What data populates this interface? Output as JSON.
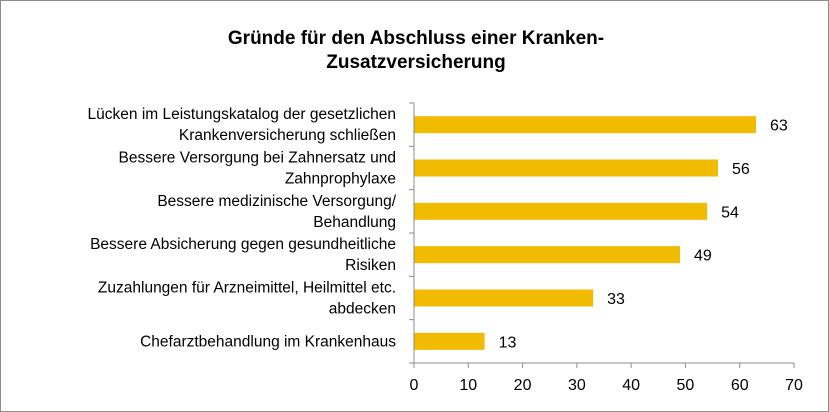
{
  "chart_data": {
    "type": "bar",
    "orientation": "horizontal",
    "title_lines": [
      "Gründe für den Abschluss einer Kranken-",
      "Zusatzversicherung"
    ],
    "categories": [
      [
        "Lücken im Leistungskatalog der gesetzlichen",
        "Krankenversicherung schließen"
      ],
      [
        "Bessere Versorgung bei Zahnersatz und",
        "Zahnprophylaxe"
      ],
      [
        "Bessere medizinische Versorgung/",
        "Behandlung"
      ],
      [
        "Bessere Absicherung gegen gesundheitliche",
        "Risiken"
      ],
      [
        "Zuzahlungen für Arzneimittel, Heilmittel etc.",
        "abdecken"
      ],
      [
        "Chefarztbehandlung im Krankenhaus"
      ]
    ],
    "values": [
      63,
      56,
      54,
      49,
      33,
      13
    ],
    "data_labels": [
      "63",
      "56",
      "54",
      "49",
      "33",
      "13"
    ],
    "xlim": [
      0,
      70
    ],
    "xticks": [
      "0",
      "10",
      "20",
      "30",
      "40",
      "50",
      "60",
      "70"
    ],
    "grid": false,
    "bar_color": "#F0BB00",
    "axis_color": "#8c8c8c"
  }
}
